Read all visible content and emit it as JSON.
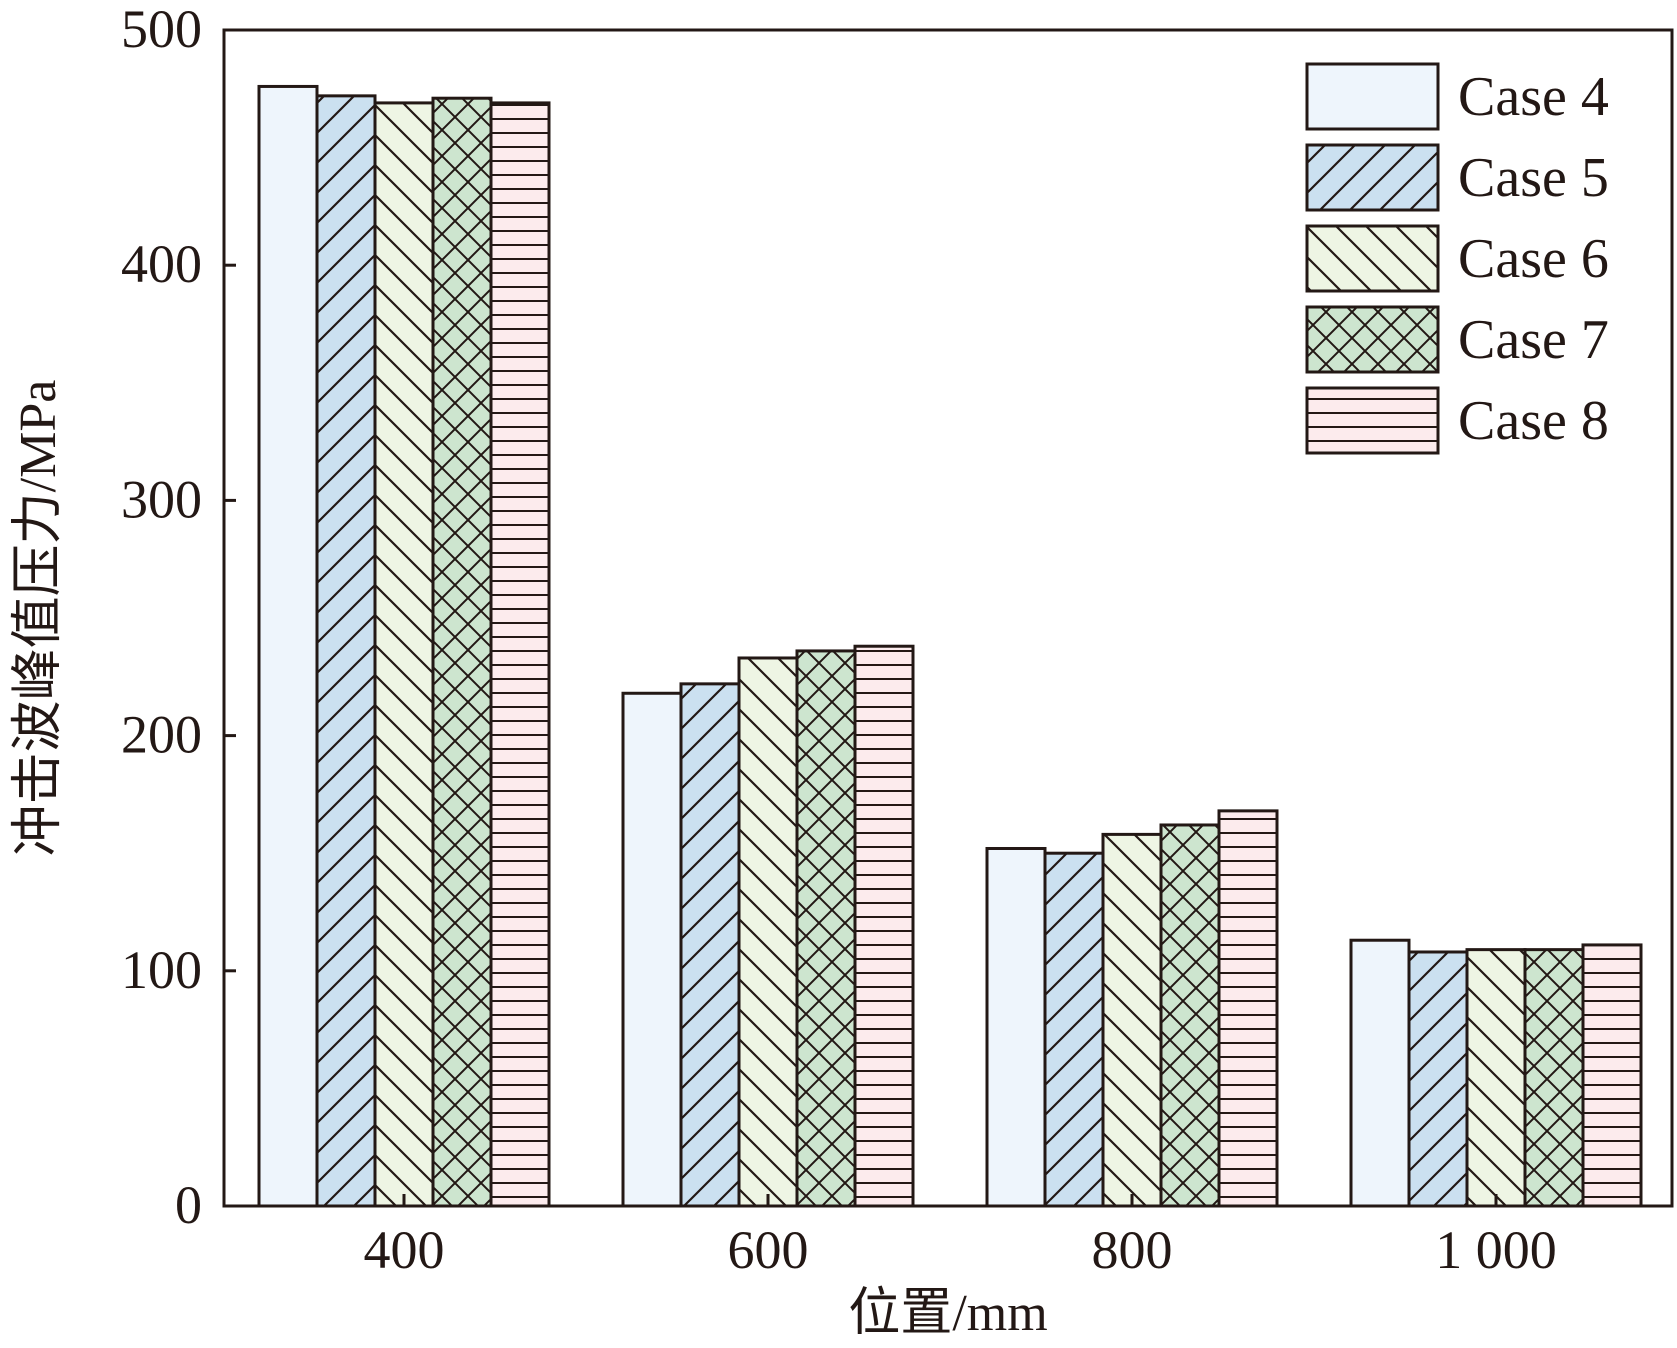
{
  "chart_data": {
    "type": "bar",
    "title": "",
    "xlabel": "位置/mm",
    "ylabel": "冲击波峰值压力/MPa",
    "categories": [
      "400",
      "600",
      "800",
      "1 000"
    ],
    "ylim": [
      0,
      500
    ],
    "yticks": [
      0,
      100,
      200,
      300,
      400,
      500
    ],
    "grid": false,
    "legend_position": "top-right",
    "series": [
      {
        "name": "Case 4",
        "values": [
          476,
          218,
          152,
          113
        ],
        "color": "#eef5fc",
        "pattern": "none"
      },
      {
        "name": "Case 5",
        "values": [
          472,
          222,
          150,
          108
        ],
        "color": "#cbe0f0",
        "pattern": "forward-diagonal"
      },
      {
        "name": "Case 6",
        "values": [
          469,
          233,
          158,
          109
        ],
        "color": "#eef5e4",
        "pattern": "back-diagonal"
      },
      {
        "name": "Case 7",
        "values": [
          471,
          236,
          162,
          109
        ],
        "color": "#cde5cf",
        "pattern": "crosshatch"
      },
      {
        "name": "Case 8",
        "values": [
          469,
          238,
          168,
          111
        ],
        "color": "#fcebed",
        "pattern": "horizontal"
      }
    ]
  }
}
